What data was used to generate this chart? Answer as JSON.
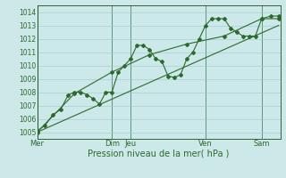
{
  "xlabel": "Pression niveau de la mer( hPa )",
  "bg_color": "#cce8e8",
  "grid_color": "#99cccc",
  "line_color": "#2d6a2d",
  "dark_line_color": "#1a4d1a",
  "ylim": [
    1004.5,
    1014.5
  ],
  "xlim": [
    0,
    156
  ],
  "day_labels": [
    "Mer",
    "Dim",
    "Jeu",
    "Ven",
    "Sam"
  ],
  "day_positions": [
    0,
    48,
    60,
    108,
    144
  ],
  "series1": [
    [
      0,
      1005.1
    ],
    [
      5,
      1005.5
    ],
    [
      10,
      1006.3
    ],
    [
      15,
      1006.7
    ],
    [
      20,
      1007.8
    ],
    [
      24,
      1008.0
    ],
    [
      28,
      1008.0
    ],
    [
      32,
      1007.8
    ],
    [
      36,
      1007.5
    ],
    [
      40,
      1007.1
    ],
    [
      44,
      1008.0
    ],
    [
      48,
      1008.0
    ],
    [
      52,
      1009.5
    ],
    [
      56,
      1010.0
    ],
    [
      60,
      1010.5
    ],
    [
      64,
      1011.5
    ],
    [
      68,
      1011.5
    ],
    [
      72,
      1011.2
    ],
    [
      76,
      1010.5
    ],
    [
      80,
      1010.3
    ],
    [
      84,
      1009.2
    ],
    [
      88,
      1009.1
    ],
    [
      92,
      1009.3
    ],
    [
      96,
      1010.5
    ],
    [
      100,
      1011.0
    ],
    [
      104,
      1012.0
    ],
    [
      108,
      1013.0
    ],
    [
      112,
      1013.5
    ],
    [
      116,
      1013.5
    ],
    [
      120,
      1013.5
    ],
    [
      124,
      1012.8
    ],
    [
      128,
      1012.5
    ],
    [
      132,
      1012.2
    ],
    [
      136,
      1012.2
    ],
    [
      140,
      1012.2
    ],
    [
      144,
      1013.5
    ],
    [
      150,
      1013.7
    ],
    [
      155,
      1013.7
    ]
  ],
  "series2": [
    [
      0,
      1005.0
    ],
    [
      24,
      1007.9
    ],
    [
      48,
      1009.5
    ],
    [
      72,
      1010.8
    ],
    [
      96,
      1011.6
    ],
    [
      120,
      1012.2
    ],
    [
      144,
      1013.5
    ],
    [
      155,
      1013.5
    ]
  ],
  "series3": [
    [
      0,
      1005.0
    ],
    [
      155,
      1013.0
    ]
  ],
  "yticks": [
    1005,
    1006,
    1007,
    1008,
    1009,
    1010,
    1011,
    1012,
    1013,
    1014
  ],
  "xlabel_fontsize": 7.0,
  "ytick_fontsize": 5.5,
  "xtick_fontsize": 6.0
}
